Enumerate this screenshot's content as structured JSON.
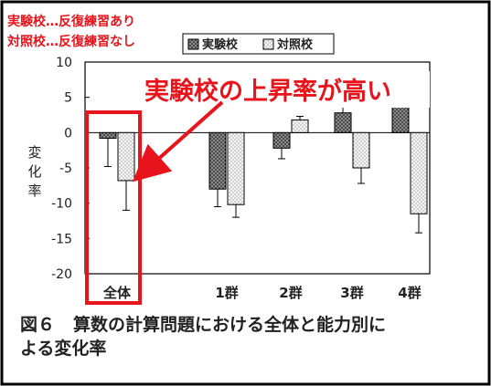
{
  "annotations": {
    "legend_note_1": "実験校…反復練習あり",
    "legend_note_2": "対照校…反復練習なし",
    "highlight": "実験校の上昇率が高い"
  },
  "caption": {
    "figure_no": "図６",
    "text_line1": "算数の計算問題における全体と能力別に",
    "text_line2": "よる変化率"
  },
  "chart_data": {
    "type": "bar",
    "categories": [
      "全体",
      "1群",
      "2群",
      "3群",
      "4群"
    ],
    "series": [
      {
        "name": "実験校",
        "values": [
          -0.8,
          -8.0,
          -2.2,
          2.8,
          4.8
        ],
        "errors": [
          4.0,
          2.5,
          1.5,
          1.5,
          1.5
        ]
      },
      {
        "name": "対照校",
        "values": [
          -6.8,
          -10.2,
          1.8,
          -5.0,
          -11.5
        ],
        "errors": [
          4.2,
          1.8,
          0.5,
          2.2,
          2.7
        ]
      }
    ],
    "ylabel": "変化率",
    "ylim": [
      -20,
      10
    ],
    "yticks": [
      10,
      5,
      0,
      -5,
      -10,
      -15,
      -20
    ],
    "grid": false,
    "legend_placement": "top-right",
    "colors": {
      "highlight_red": "#e8141c",
      "experimental_fill": "#444444",
      "control_fill": "#ececec"
    }
  }
}
